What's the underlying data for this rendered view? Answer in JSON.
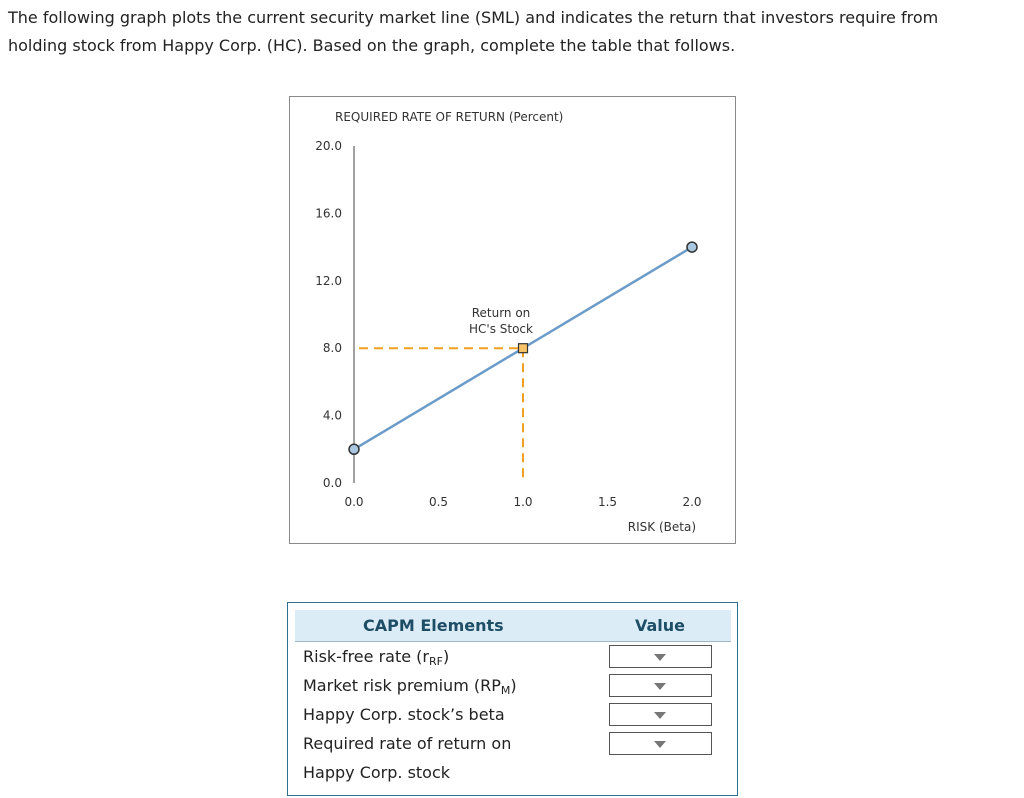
{
  "intro": {
    "line1": "The following graph plots the current security market line (SML) and indicates the return that investors require from",
    "line2": "holding stock from Happy Corp. (HC). Based on the graph, complete the table that follows."
  },
  "chart_data": {
    "type": "line",
    "title": "REQUIRED RATE OF RETURN (Percent)",
    "xlabel": "RISK (Beta)",
    "ylabel": "REQUIRED RATE OF RETURN (Percent)",
    "xlim": [
      0,
      2.0
    ],
    "ylim": [
      0,
      20.0
    ],
    "x_ticks": [
      "0.0",
      "0.5",
      "1.0",
      "1.5",
      "2.0"
    ],
    "y_ticks": [
      "0.0",
      "4.0",
      "8.0",
      "12.0",
      "16.0",
      "20.0"
    ],
    "series": [
      {
        "x": [
          0,
          2.0
        ],
        "y": [
          2.0,
          14.0
        ],
        "color": "#6b9bc8"
      }
    ],
    "annotation": {
      "point": {
        "x": 1.0,
        "y": 8.0
      },
      "label_line1": "Return on",
      "label_line2": "HC's Stock",
      "color": "#f0a020"
    },
    "grid": false
  },
  "table": {
    "header_elements": "CAPM Elements",
    "header_value": "Value",
    "rows": [
      {
        "label_main": "Risk-free rate (r",
        "label_sub": "RF",
        "label_end": ")",
        "value": ""
      },
      {
        "label_main": "Market risk premium (RP",
        "label_sub": "M",
        "label_end": ")",
        "value": ""
      },
      {
        "label_main": "Happy Corp. stock’s beta",
        "label_sub": "",
        "label_end": "",
        "value": ""
      },
      {
        "label_main": "Required rate of return on",
        "label_sub": "",
        "label_end": "",
        "value": ""
      }
    ],
    "row4_line2": "Happy Corp. stock"
  }
}
